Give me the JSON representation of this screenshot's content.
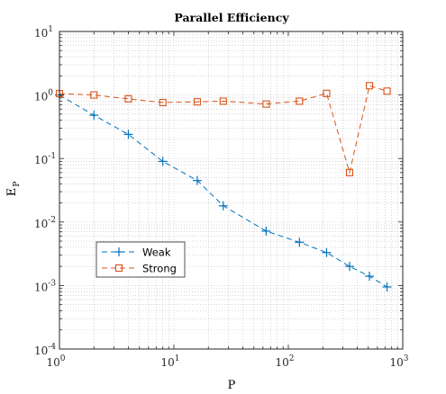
{
  "chart_data": {
    "type": "line",
    "title": "Parallel Efficiency",
    "xlabel": "P",
    "ylabel": "E",
    "ylabel_subscript": "P",
    "xscale": "log",
    "yscale": "log",
    "xlim": [
      1,
      1000
    ],
    "ylim": [
      0.0001,
      10
    ],
    "grid": true,
    "minor_grid": true,
    "legend_position": "lower-left",
    "x_ticks": [
      {
        "base": "10",
        "exp": "0",
        "value": 1
      },
      {
        "base": "10",
        "exp": "1",
        "value": 10
      },
      {
        "base": "10",
        "exp": "2",
        "value": 100
      },
      {
        "base": "10",
        "exp": "3",
        "value": 1000
      }
    ],
    "y_ticks": [
      {
        "base": "10",
        "exp": "-4",
        "value": 0.0001
      },
      {
        "base": "10",
        "exp": "-3",
        "value": 0.001
      },
      {
        "base": "10",
        "exp": "-2",
        "value": 0.01
      },
      {
        "base": "10",
        "exp": "-1",
        "value": 0.1
      },
      {
        "base": "10",
        "exp": "0",
        "value": 1
      },
      {
        "base": "10",
        "exp": "1",
        "value": 10
      }
    ],
    "series": [
      {
        "name": "Weak",
        "color": "#0072BD",
        "marker": "plus",
        "line_style": "dashed",
        "x": [
          1,
          2,
          4,
          8,
          16,
          27,
          64,
          125,
          216,
          343,
          512,
          729
        ],
        "y": [
          1.0,
          0.48,
          0.24,
          0.09,
          0.045,
          0.018,
          0.0072,
          0.0048,
          0.0033,
          0.002,
          0.0014,
          0.00095
        ]
      },
      {
        "name": "Strong",
        "color": "#D95319",
        "marker": "square",
        "line_style": "dashed",
        "x": [
          1,
          2,
          4,
          8,
          16,
          27,
          64,
          125,
          216,
          343,
          512,
          729
        ],
        "y": [
          1.05,
          1.0,
          0.87,
          0.76,
          0.78,
          0.8,
          0.72,
          0.8,
          1.06,
          0.06,
          1.4,
          1.15
        ]
      }
    ]
  }
}
